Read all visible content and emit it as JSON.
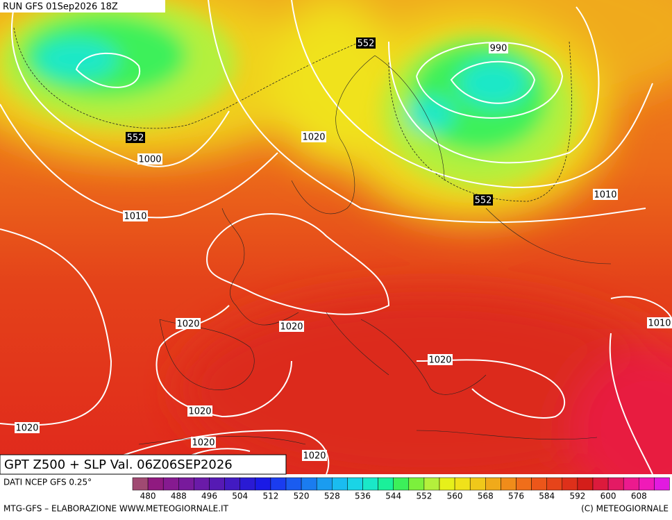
{
  "header": {
    "run": "RUN GFS 01Sep2026 18Z"
  },
  "map": {
    "title": "GPT Z500 + SLP Val. 06Z06SEP2026",
    "z500_labels": [
      "552",
      "552",
      "552"
    ],
    "slp_labels": [
      "990",
      "1020",
      "1000",
      "1010",
      "1010",
      "1020",
      "1020",
      "1010",
      "1020",
      "1020",
      "1020",
      "1020",
      "1020"
    ]
  },
  "legend": {
    "source": "DATI NCEP GFS 0.25°",
    "colors": [
      "#a04a72",
      "#901a80",
      "#861a90",
      "#781a9c",
      "#6a1aa8",
      "#561ab4",
      "#421ac2",
      "#2a1ad4",
      "#1a1ae6",
      "#1a3cf0",
      "#1a5cf0",
      "#1a7cf0",
      "#1a9cf0",
      "#1abcf0",
      "#1ad4e6",
      "#1ae8c8",
      "#1af09a",
      "#3cf05a",
      "#7cf03c",
      "#b4f03c",
      "#e6f01a",
      "#f0e21a",
      "#f0c81a",
      "#f0aa1a",
      "#f08c1a",
      "#f06e1a",
      "#ec561a",
      "#e6441a",
      "#de301a",
      "#d41e1a",
      "#dc1a3c",
      "#e41a64",
      "#ec1a8e",
      "#f01ab8",
      "#e21ae0"
    ],
    "ticks": [
      480,
      488,
      496,
      504,
      512,
      520,
      528,
      536,
      544,
      552,
      560,
      568,
      576,
      584,
      592,
      600,
      608
    ]
  },
  "footer": {
    "left": "MTG-GFS – ELABORAZIONE WWW.METEOGIORNALE.IT",
    "right": "(C) METEOGIORNALE"
  }
}
